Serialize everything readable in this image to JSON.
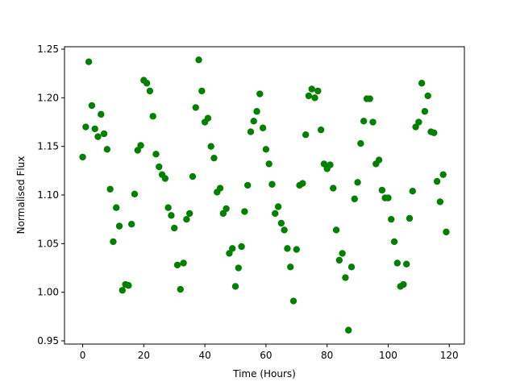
{
  "chart_data": {
    "type": "scatter",
    "x_label": "Time (Hours)",
    "y_label": "Normalised Flux",
    "x": [
      0,
      1,
      2,
      3,
      4,
      5,
      6,
      7,
      8,
      9,
      10,
      11,
      12,
      13,
      14,
      15,
      16,
      17,
      18,
      19,
      20,
      21,
      22,
      23,
      24,
      25,
      26,
      27,
      28,
      29,
      30,
      31,
      32,
      33,
      34,
      35,
      36,
      37,
      38,
      39,
      40,
      41,
      42,
      43,
      44,
      45,
      46,
      47,
      48,
      49,
      50,
      51,
      52,
      53,
      54,
      55,
      56,
      57,
      58,
      59,
      60,
      61,
      62,
      63,
      64,
      65,
      66,
      67,
      68,
      69,
      70,
      71,
      72,
      73,
      74,
      75,
      76,
      77,
      78,
      79,
      80,
      81,
      82,
      83,
      84,
      85,
      86,
      87,
      88,
      89,
      90,
      91,
      92,
      93,
      94,
      95,
      96,
      97,
      98,
      99,
      100,
      101,
      102,
      103,
      104,
      105,
      106,
      107,
      108,
      109,
      110,
      111,
      112,
      113,
      114,
      115,
      116,
      117,
      118,
      119
    ],
    "series": [
      {
        "color": "#008000",
        "values": [
          1.139,
          1.17,
          1.237,
          1.192,
          1.168,
          1.16,
          1.183,
          1.163,
          1.147,
          1.106,
          1.052,
          1.087,
          1.068,
          1.002,
          1.008,
          1.007,
          1.07,
          1.101,
          1.146,
          1.151,
          1.218,
          1.215,
          1.207,
          1.181,
          1.142,
          1.129,
          1.121,
          1.117,
          1.087,
          1.079,
          1.066,
          1.028,
          1.003,
          1.03,
          1.075,
          1.081,
          1.119,
          1.19,
          1.239,
          1.207,
          1.175,
          1.179,
          1.15,
          1.138,
          1.103,
          1.107,
          1.081,
          1.086,
          1.04,
          1.045,
          1.006,
          1.025,
          1.047,
          1.083,
          1.11,
          1.165,
          1.176,
          1.186,
          1.204,
          1.169,
          1.147,
          1.132,
          1.111,
          1.081,
          1.088,
          1.071,
          1.064,
          1.045,
          1.026,
          0.991,
          1.044,
          1.11,
          1.112,
          1.162,
          1.202,
          1.209,
          1.2,
          1.207,
          1.167,
          1.132,
          1.127,
          1.131,
          1.107,
          1.064,
          1.033,
          1.04,
          1.015,
          0.961,
          1.026,
          1.096,
          1.113,
          1.153,
          1.176,
          1.199,
          1.199,
          1.175,
          1.132,
          1.136,
          1.105,
          1.097,
          1.097,
          1.075,
          1.052,
          1.03,
          1.006,
          1.008,
          1.029,
          1.076,
          1.104,
          1.17,
          1.175,
          1.215,
          1.186,
          1.202,
          1.165,
          1.164,
          1.114,
          1.093,
          1.121,
          1.062
        ]
      }
    ],
    "xlim": [
      -5.95,
      124.95
    ],
    "xticks": [
      0,
      20,
      40,
      60,
      80,
      100,
      120
    ],
    "ylim": [
      0.9467,
      1.2525
    ],
    "yticks": [
      0.95,
      {
        "value": 1.0,
        "label": "1.00"
      },
      1.05,
      {
        "value": 1.1,
        "label": "1.10"
      },
      1.15,
      {
        "value": 1.2,
        "label": "1.20"
      },
      1.25
    ]
  }
}
